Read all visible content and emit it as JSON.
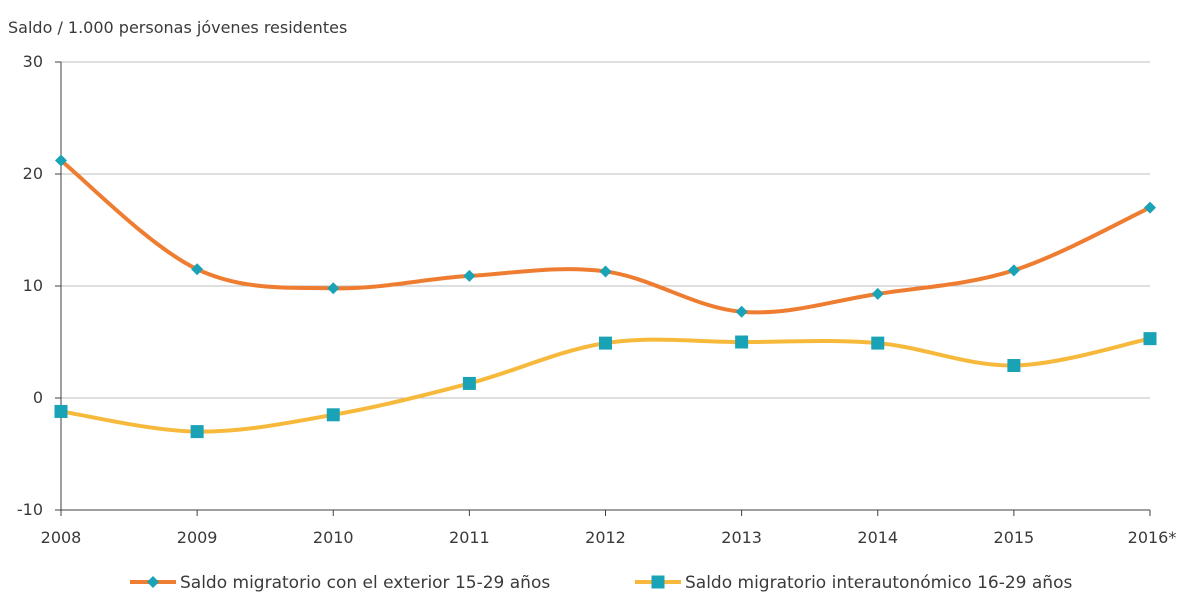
{
  "chart_data": {
    "type": "line",
    "ylabel": "Saldo / 1.000 personas jóvenes residentes",
    "ylim": [
      -10,
      30
    ],
    "yticks": [
      "30",
      "20",
      "10",
      "0",
      "-10"
    ],
    "categories": [
      "2008",
      "2009",
      "2010",
      "2011",
      "2012",
      "2013",
      "2014",
      "2015",
      "2016*"
    ],
    "grid": true,
    "legend_position": "bottom",
    "series": [
      {
        "name": "Saldo migratorio con el exterior 15-29 años",
        "values": [
          21.2,
          11.5,
          9.8,
          10.9,
          11.3,
          7.7,
          9.3,
          11.4,
          17.0
        ],
        "line_color": "#ee7d31",
        "marker_color": "#1aa2b6",
        "marker": "diamond"
      },
      {
        "name": "Saldo migratorio interautonómico 16-29 años",
        "values": [
          -1.2,
          -3.0,
          -1.5,
          1.3,
          4.9,
          5.0,
          4.9,
          2.9,
          5.3
        ],
        "line_color": "#f6b93b",
        "marker_color": "#1aa2b6",
        "marker": "square"
      }
    ]
  }
}
